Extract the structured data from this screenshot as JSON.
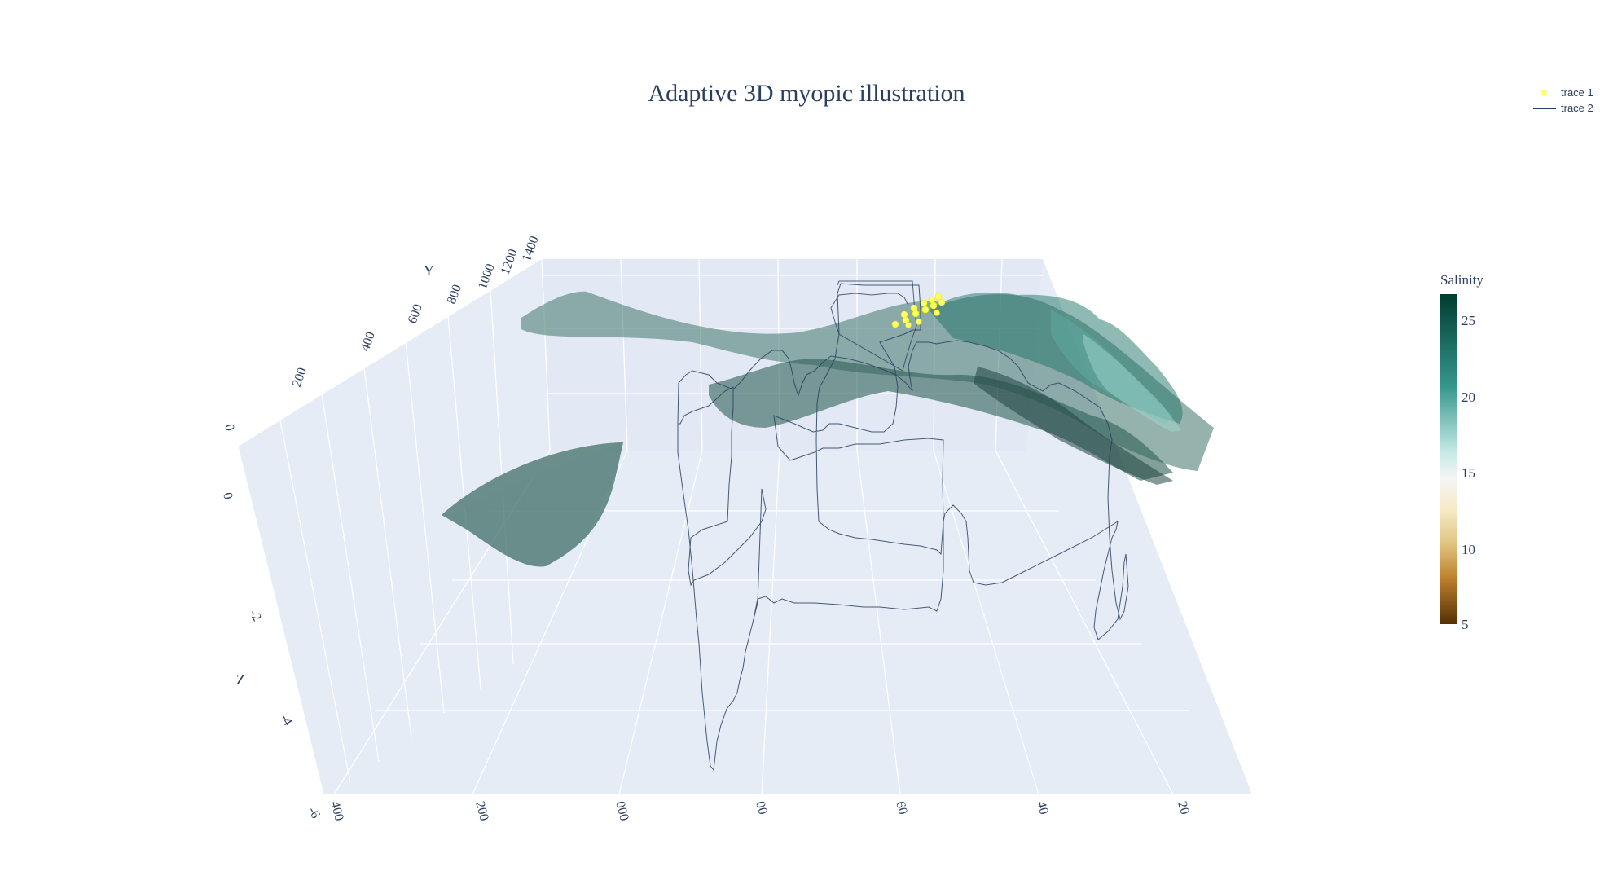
{
  "chart_data": {
    "type": "3d-scatter-line-surface",
    "title": "Adaptive 3D myopic illustration",
    "legend": {
      "placement": "top-right",
      "entries": [
        {
          "name": "trace 1",
          "kind": "markers",
          "color": "#ffff66"
        },
        {
          "name": "trace 2",
          "kind": "lines",
          "color": "#2a3f5f"
        }
      ]
    },
    "colorbar": {
      "title": "Salinity",
      "range": [
        5,
        27
      ],
      "ticks": [
        "25",
        "20",
        "15",
        "10",
        "5"
      ],
      "colorscale": "BrBG",
      "colors": [
        "#543005",
        "#bf812d",
        "#dfc27d",
        "#f6e8c3",
        "#f5f5f5",
        "#c7eae5",
        "#35978f",
        "#003c30"
      ]
    },
    "axes": {
      "x": {
        "title": "",
        "ticks": [
          "400",
          "200",
          "000",
          "00",
          "60",
          "40",
          "20"
        ]
      },
      "y": {
        "title": "Y",
        "ticks": [
          "0",
          "200",
          "400",
          "600",
          "800",
          "1000",
          "1200",
          "1400"
        ],
        "range": [
          0,
          1400
        ]
      },
      "z": {
        "title": "Z",
        "ticks": [
          "0",
          "-2",
          "-4",
          "-6"
        ],
        "range": [
          -6,
          0
        ]
      }
    },
    "background": "#e5ecf6",
    "grid": true,
    "series": [
      {
        "name": "trace 1",
        "mode": "markers",
        "marker_color": "#ffff66",
        "points": 14
      },
      {
        "name": "trace 2",
        "mode": "lines",
        "line_color": "#2a3f5f"
      }
    ]
  }
}
